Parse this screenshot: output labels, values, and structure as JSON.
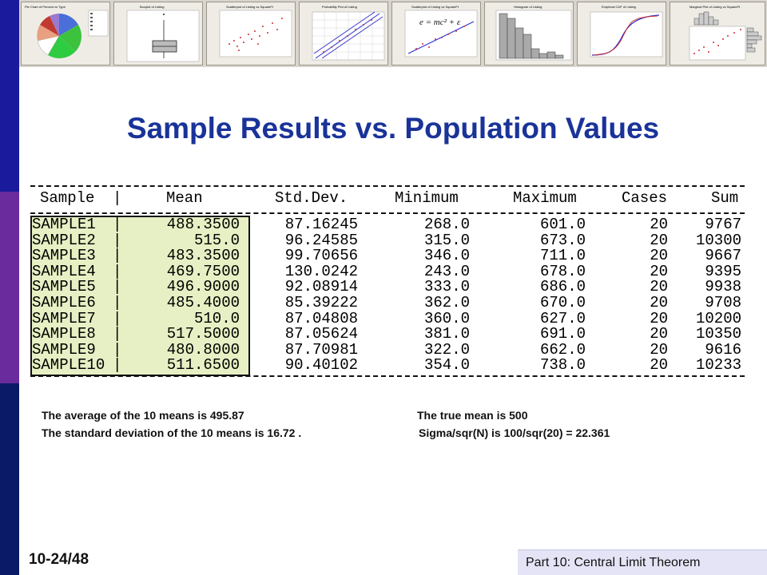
{
  "thumbnails": [
    {
      "name": "pie-chart",
      "caption": "Pie Chart of Percent vs Type"
    },
    {
      "name": "boxplot",
      "caption": "Boxplot of Listing"
    },
    {
      "name": "scatter-1",
      "caption": "Scatterplot of Listing vs SquareFt"
    },
    {
      "name": "probability-plot",
      "caption": "Probability Plot of Listing"
    },
    {
      "name": "scatter-regression",
      "caption": "Scatterplot of Listing vs SquareFt",
      "formula": "e = mc² + ε"
    },
    {
      "name": "histogram",
      "caption": "Histogram of Listing"
    },
    {
      "name": "empirical-cdf",
      "caption": "Empirical CDF of Listing"
    },
    {
      "name": "marginal-plot",
      "caption": "Marginal Plot of Listing vs SquareFt"
    }
  ],
  "title": "Sample Results vs. Population Values",
  "table": {
    "headers": {
      "sample": "Sample",
      "mean": "Mean",
      "sd": "Std.Dev.",
      "min": "Minimum",
      "max": "Maximum",
      "cases": "Cases",
      "sum": "Sum"
    },
    "rows": [
      {
        "sample": "SAMPLE1",
        "mean": "488.3500",
        "sd": "87.16245",
        "min": "268.0",
        "max": "601.0",
        "cases": "20",
        "sum": "9767"
      },
      {
        "sample": "SAMPLE2",
        "mean": "515.0",
        "sd": "96.24585",
        "min": "315.0",
        "max": "673.0",
        "cases": "20",
        "sum": "10300"
      },
      {
        "sample": "SAMPLE3",
        "mean": "483.3500",
        "sd": "99.70656",
        "min": "346.0",
        "max": "711.0",
        "cases": "20",
        "sum": "9667"
      },
      {
        "sample": "SAMPLE4",
        "mean": "469.7500",
        "sd": "130.0242",
        "min": "243.0",
        "max": "678.0",
        "cases": "20",
        "sum": "9395"
      },
      {
        "sample": "SAMPLE5",
        "mean": "496.9000",
        "sd": "92.08914",
        "min": "333.0",
        "max": "686.0",
        "cases": "20",
        "sum": "9938"
      },
      {
        "sample": "SAMPLE6",
        "mean": "485.4000",
        "sd": "85.39222",
        "min": "362.0",
        "max": "670.0",
        "cases": "20",
        "sum": "9708"
      },
      {
        "sample": "SAMPLE7",
        "mean": "510.0",
        "sd": "87.04808",
        "min": "360.0",
        "max": "627.0",
        "cases": "20",
        "sum": "10200"
      },
      {
        "sample": "SAMPLE8",
        "mean": "517.5000",
        "sd": "87.05624",
        "min": "381.0",
        "max": "691.0",
        "cases": "20",
        "sum": "10350"
      },
      {
        "sample": "SAMPLE9",
        "mean": "480.8000",
        "sd": "87.70981",
        "min": "322.0",
        "max": "662.0",
        "cases": "20",
        "sum": "9616"
      },
      {
        "sample": "SAMPLE10",
        "mean": "511.6500",
        "sd": "90.40102",
        "min": "354.0",
        "max": "738.0",
        "cases": "20",
        "sum": "10233"
      }
    ]
  },
  "notes": {
    "line1_left": "The average of the 10 means is 495.87",
    "line1_right": "The true mean is 500",
    "line2_left": "The standard deviation of the 10 means is 16.72 .",
    "line2_right": "Sigma/sqr(N) is 100/sqr(20) = 22.361"
  },
  "page_number": "10-24/48",
  "footer": "Part 10: Central Limit Theorem",
  "colors": {
    "title": "#1a3399",
    "highlight": "#e6f0c4",
    "footer_bg": "#e4e4f6"
  }
}
